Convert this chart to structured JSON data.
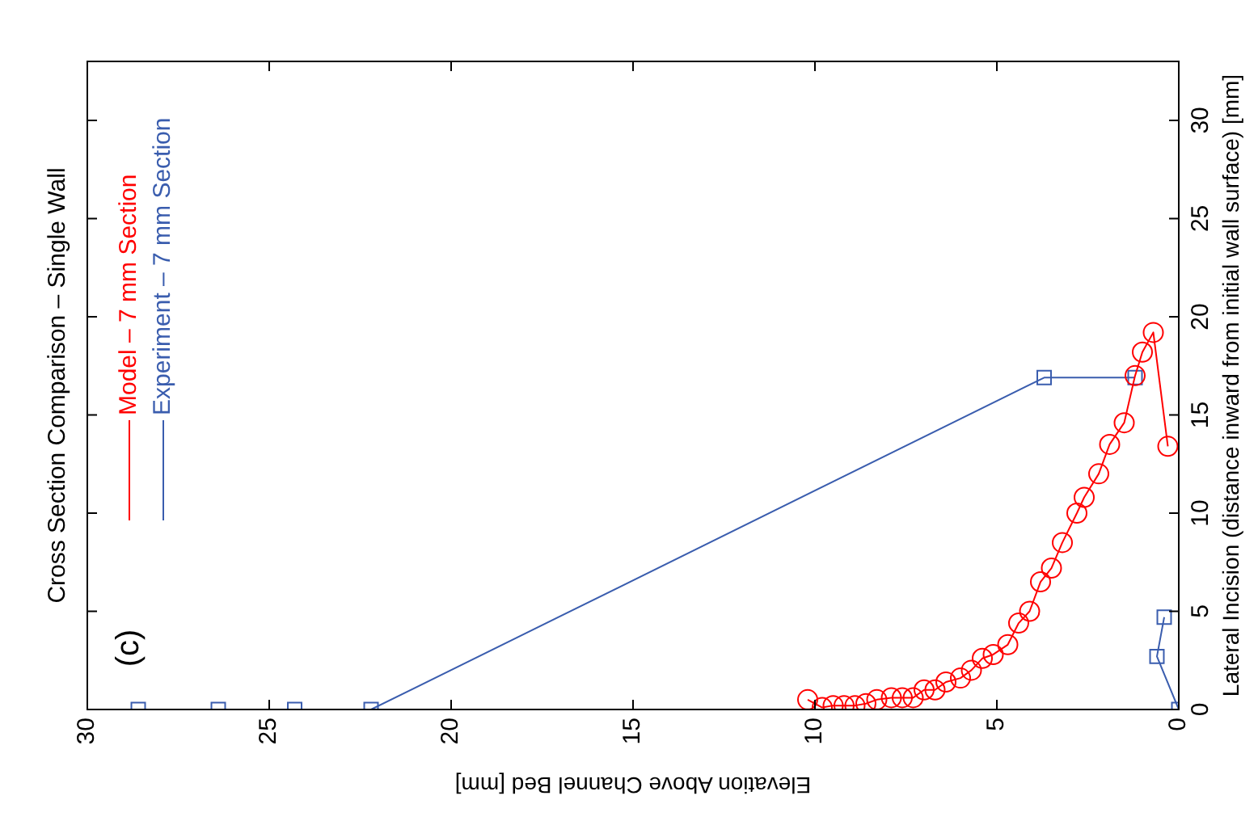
{
  "chart_data": {
    "type": "line",
    "title": "Cross Section Comparison – Single Wall",
    "xlabel": "Elevation Above Channel Bed [mm]",
    "ylabel": "Lateral Incision (distance inward from initial wall surface) [mm]",
    "annotations": [
      "(c)"
    ],
    "xlim": [
      30,
      0
    ],
    "xticks": [
      30,
      25,
      20,
      15,
      10,
      5,
      0
    ],
    "ylim": [
      0,
      33
    ],
    "yticks": [
      0,
      5,
      10,
      15,
      20,
      25,
      30
    ],
    "grid": false,
    "legend": "left",
    "series": [
      {
        "name": "Model – 7 mm Section",
        "color": "#ff0000",
        "marker": "circle",
        "x": [
          10.2,
          9.8,
          9.5,
          9.2,
          8.9,
          8.6,
          8.3,
          7.9,
          7.6,
          7.3,
          7.0,
          6.7,
          6.4,
          6.0,
          5.7,
          5.4,
          5.1,
          4.7,
          4.4,
          4.1,
          3.8,
          3.5,
          3.2,
          2.8,
          2.6,
          2.2,
          1.9,
          1.5,
          1.2,
          1.0,
          0.7,
          0.3
        ],
        "values": [
          0.5,
          0.1,
          0.2,
          0.2,
          0.2,
          0.3,
          0.5,
          0.6,
          0.6,
          0.6,
          1.0,
          1.0,
          1.4,
          1.6,
          2.0,
          2.6,
          2.8,
          3.3,
          4.4,
          5.0,
          6.5,
          7.2,
          8.5,
          10.0,
          10.8,
          12.0,
          13.5,
          14.6,
          17.0,
          18.2,
          19.2,
          13.4
        ]
      },
      {
        "name": "Experiment – 7 mm Section",
        "color": "#3a5dae",
        "marker": "square",
        "x": [
          28.6,
          26.4,
          24.3,
          22.2,
          3.7,
          1.2,
          null,
          0.4,
          0.6,
          0
        ],
        "values": [
          0,
          0,
          0,
          0,
          16.9,
          16.9,
          null,
          4.7,
          2.7,
          0
        ]
      }
    ]
  }
}
